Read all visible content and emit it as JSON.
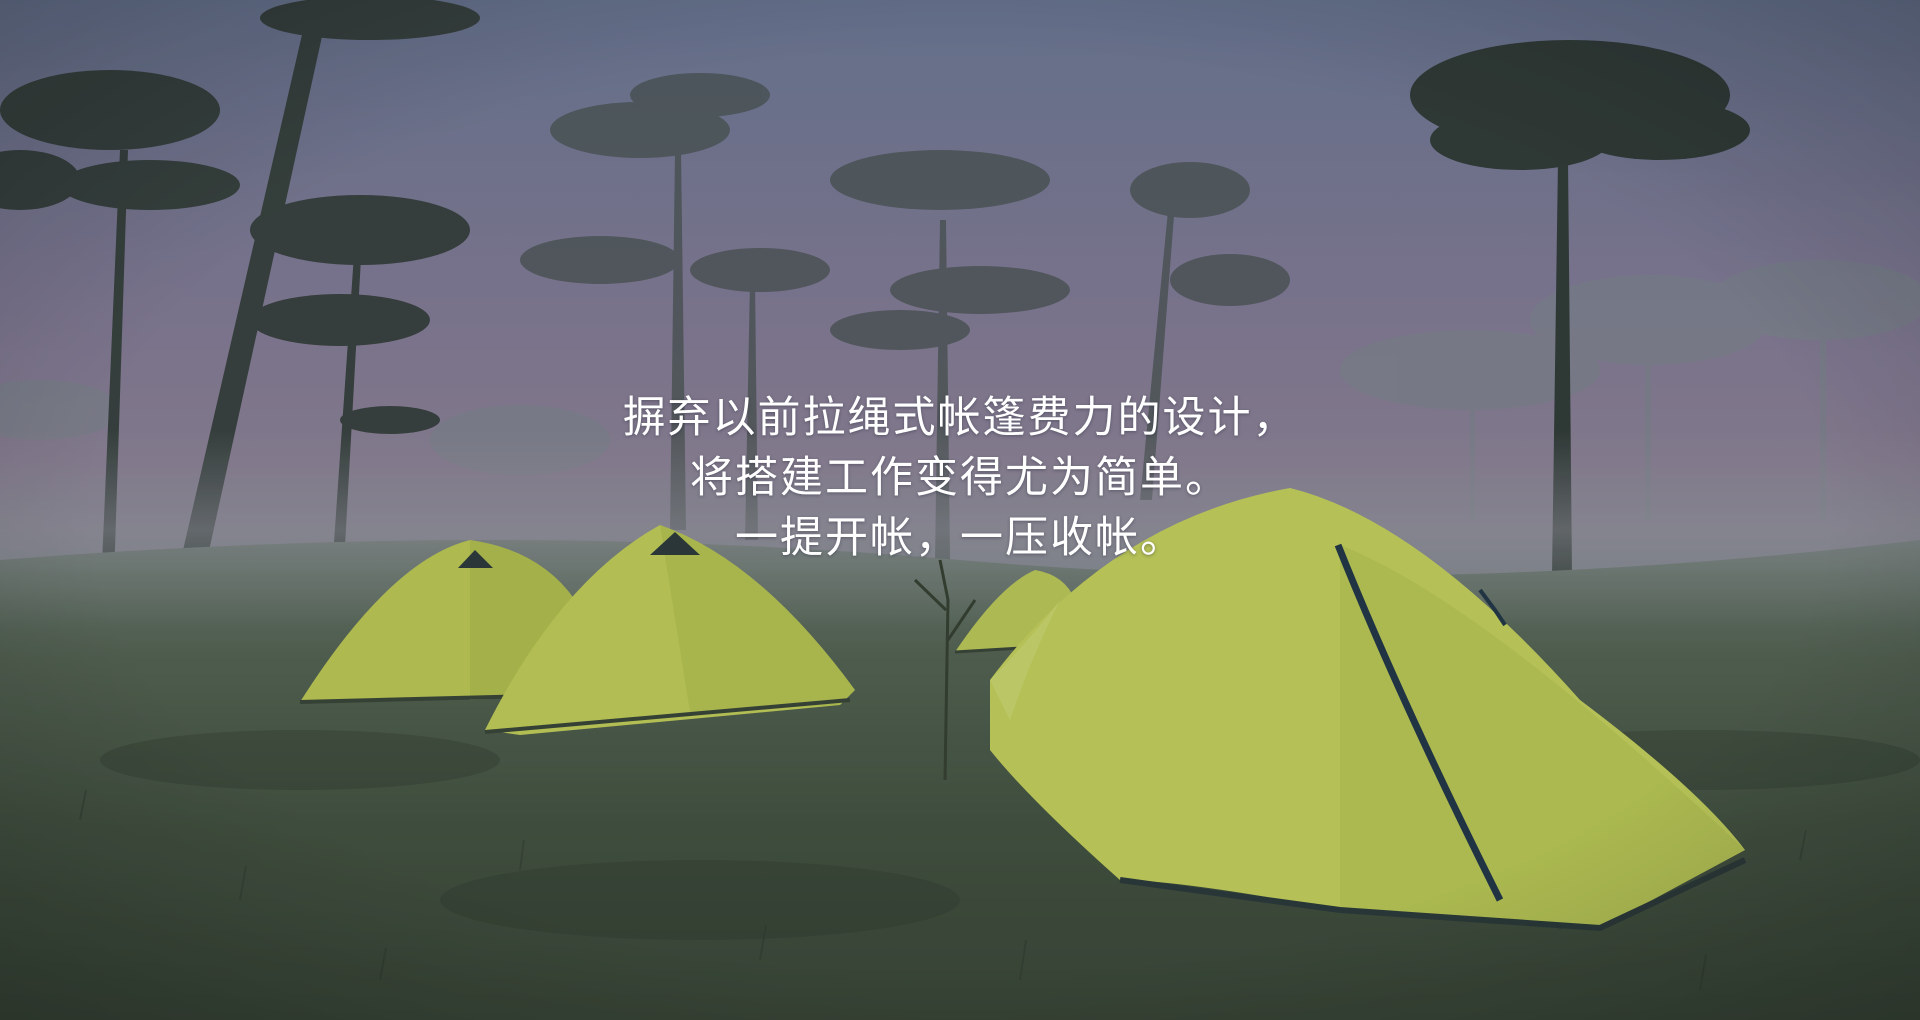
{
  "caption": {
    "line1": "摒弃以前拉绳式帐篷费力的设计，",
    "line2": "将搭建工作变得尤为简单。",
    "line3": "一提开帐，一压收帐。"
  },
  "scene": {
    "subject": "yellow-green dome tents in a misty pine forest meadow",
    "palette": {
      "sky_top": "#6f7b97",
      "sky_mid": "#8c7f96",
      "sky_horizon": "#8e8c98",
      "grass": "#3f4c3b",
      "tent": "#c9d65a",
      "tent_shade": "#a7b546",
      "tree": "#2c3530"
    }
  }
}
